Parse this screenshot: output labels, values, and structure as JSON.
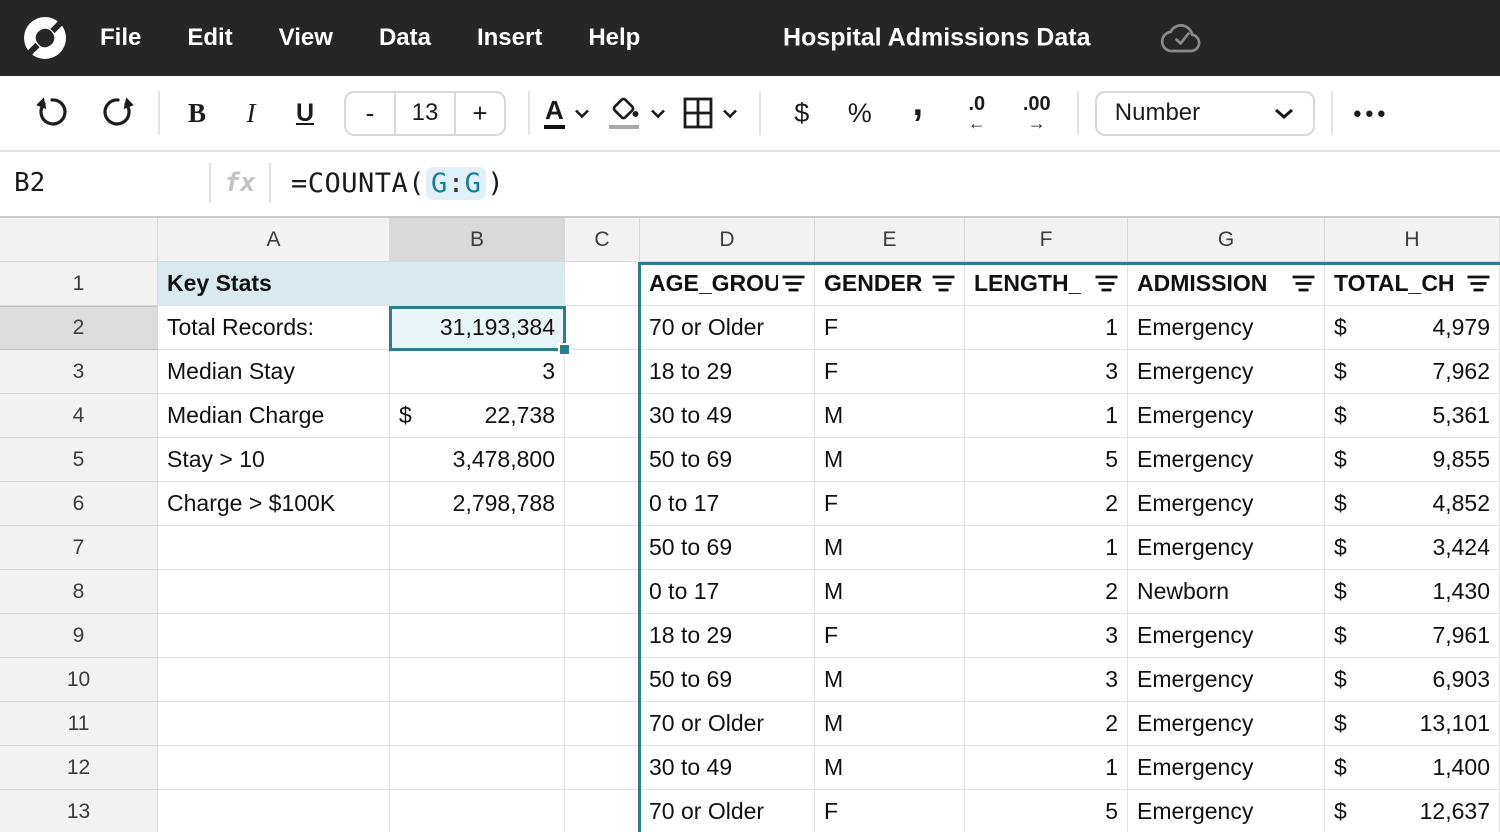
{
  "app": {
    "title": "Hospital Admissions Data",
    "menu": [
      "File",
      "Edit",
      "View",
      "Data",
      "Insert",
      "Help"
    ],
    "save_status": "synced"
  },
  "toolbar": {
    "bold": "B",
    "italic": "I",
    "underline": "U",
    "decrease_font": "-",
    "font_size": "13",
    "increase_font": "+",
    "text_color": "A",
    "currency": "$",
    "percent": "%",
    "comma": ",",
    "decrease_decimal_label": ".0",
    "decrease_decimal_arrow": "←",
    "increase_decimal_label": ".00",
    "increase_decimal_arrow": "→",
    "format": "Number",
    "more": "●●●"
  },
  "formula_bar": {
    "cell_ref": "B2",
    "fx_label": "fx",
    "prefix": "=COUNTA(",
    "range_left": "G",
    "range_colon": ":",
    "range_right": "G",
    "suffix": ")"
  },
  "grid": {
    "column_letters": [
      "A",
      "B",
      "C",
      "D",
      "E",
      "F",
      "G",
      "H"
    ],
    "row_numbers": [
      "1",
      "2",
      "3",
      "4",
      "5",
      "6",
      "7",
      "8",
      "9",
      "10",
      "11",
      "12",
      "13"
    ],
    "selected_cell": "B2",
    "selected_column": "B",
    "selected_row": "2",
    "key_stats": {
      "title": "Key Stats",
      "rows": [
        {
          "label": "Total Records:",
          "value": "31,193,384"
        },
        {
          "label": "Median Stay",
          "value": "3"
        },
        {
          "label": "Median Charge",
          "currency": "$",
          "value": "22,738"
        },
        {
          "label": "Stay > 10",
          "value": "3,478,800"
        },
        {
          "label": "Charge > $100K",
          "value": "2,798,788"
        }
      ]
    },
    "table": {
      "headers": [
        "AGE_GROU",
        "GENDER",
        "LENGTH_",
        "ADMISSION",
        "TOTAL_CH"
      ],
      "currency_symbol": "$",
      "rows": [
        [
          "70 or Older",
          "F",
          "1",
          "Emergency",
          "4,979"
        ],
        [
          "18 to 29",
          "F",
          "3",
          "Emergency",
          "7,962"
        ],
        [
          "30 to 49",
          "M",
          "1",
          "Emergency",
          "5,361"
        ],
        [
          "50 to 69",
          "M",
          "5",
          "Emergency",
          "9,855"
        ],
        [
          "0 to 17",
          "F",
          "2",
          "Emergency",
          "4,852"
        ],
        [
          "50 to 69",
          "M",
          "1",
          "Emergency",
          "3,424"
        ],
        [
          "0 to 17",
          "M",
          "2",
          "Newborn",
          "1,430"
        ],
        [
          "18 to 29",
          "F",
          "3",
          "Emergency",
          "7,961"
        ],
        [
          "50 to 69",
          "M",
          "3",
          "Emergency",
          "6,903"
        ],
        [
          "70 or Older",
          "M",
          "2",
          "Emergency",
          "13,101"
        ],
        [
          "30 to 49",
          "M",
          "1",
          "Emergency",
          "1,400"
        ],
        [
          "70 or Older",
          "F",
          "5",
          "Emergency",
          "12,637"
        ]
      ]
    }
  },
  "colors": {
    "topbar_bg": "#262626",
    "accent_teal": "#2e7d8c",
    "selection_fill": "#e9f4f6",
    "key_stats_header_fill": "#d8eaee",
    "range_highlight_bg": "#dff0f8",
    "range_text": "#1a7f93",
    "grid_line": "#e2e2e2",
    "header_gray": "#f2f2f2"
  }
}
